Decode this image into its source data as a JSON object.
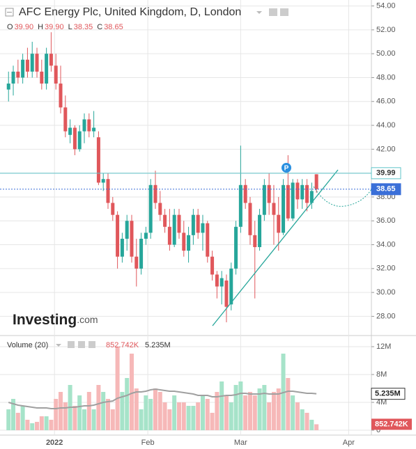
{
  "chart_data": {
    "type": "candlestick",
    "title": "AFC Energy Plc, United Kingdom, D, London",
    "ohlc_header": [
      {
        "key": "O",
        "text": "39.90"
      },
      {
        "key": "H",
        "text": "39.90"
      },
      {
        "key": "L",
        "text": "38.35"
      },
      {
        "key": "C",
        "text": "38.65"
      }
    ],
    "logo": {
      "brand": "Investing",
      "suffix": ".com"
    },
    "marker": "P",
    "up_color": "#26a69a",
    "down_color": "#e0575b",
    "volume_up_color": "#a6e3c9",
    "volume_down_color": "#f6b8b8",
    "open": [
      47,
      47.5,
      48.5,
      48,
      49.5,
      48.5,
      50,
      48.5,
      47.5,
      50,
      49,
      47.5,
      45.5,
      43.2,
      43.8,
      42,
      43.5,
      44.5,
      43.5,
      43,
      39.2,
      39.5,
      37.5,
      36.5,
      33,
      34.5,
      36,
      33,
      32,
      34.5,
      35,
      39,
      37.5,
      36.5,
      35.5,
      34,
      36.5,
      35,
      33.5,
      34.8,
      36.5,
      35,
      35.8,
      33,
      31.5,
      30.5,
      31,
      29,
      32,
      35.5,
      39,
      37.5,
      34.8,
      33.8,
      36.5,
      39,
      37.5,
      36.5,
      35,
      39,
      36.2,
      39.2,
      37.8,
      39,
      37.5,
      39.9
    ],
    "high": [
      48.5,
      49,
      49.5,
      50,
      50.5,
      51,
      50.5,
      49.5,
      50.5,
      51.8,
      50,
      49,
      46.5,
      44.5,
      44,
      44,
      45,
      45,
      45.2,
      43.5,
      40,
      40,
      38,
      36.8,
      35,
      36.5,
      36.5,
      34.5,
      35,
      35.5,
      39.5,
      40.2,
      38.5,
      37,
      37,
      37,
      37,
      36,
      35.5,
      37,
      37,
      36.5,
      36,
      33.5,
      31.8,
      31.8,
      31.5,
      32.5,
      36,
      42.3,
      39.5,
      38,
      36,
      37,
      39.5,
      40,
      39,
      38,
      39.5,
      41.5,
      39.5,
      39.5,
      39.5,
      39.5,
      39.2,
      39.9
    ],
    "low": [
      46,
      46.5,
      47.5,
      47.5,
      48,
      48,
      48,
      47,
      47,
      48.5,
      47,
      45,
      43,
      42.5,
      41.5,
      41.8,
      42.5,
      43,
      43,
      39,
      38.5,
      37,
      36,
      32,
      32.5,
      33.5,
      32.5,
      30.5,
      31.5,
      34,
      34.5,
      37,
      36,
      35,
      33.5,
      33.8,
      34.5,
      33,
      32.5,
      34,
      34.5,
      33.5,
      32.5,
      31,
      29.5,
      29,
      27.5,
      28.5,
      31.5,
      35,
      37,
      34,
      29.5,
      33.5,
      36,
      36.5,
      34,
      33.5,
      34.8,
      36,
      36,
      37,
      37,
      36.8,
      37,
      38.35
    ],
    "close": [
      47.5,
      48.5,
      48,
      49.5,
      48.5,
      50,
      48.5,
      47.5,
      50,
      49,
      47.5,
      45.5,
      43.5,
      43.8,
      42,
      43.5,
      44.5,
      43.5,
      43.8,
      39.2,
      39.5,
      37.5,
      36.5,
      33,
      34.5,
      36,
      33,
      32,
      34.5,
      35,
      39,
      37.5,
      36.5,
      35.5,
      34,
      36.5,
      35,
      33.5,
      34.8,
      36.5,
      35,
      35.8,
      33,
      31.5,
      30.5,
      31.2,
      28.8,
      32,
      35.5,
      39,
      37.5,
      34.8,
      33.8,
      36.5,
      39,
      37.5,
      36.5,
      35,
      39,
      36.2,
      39.2,
      37.8,
      39,
      37.5,
      38.5,
      38.65
    ],
    "xlim": [
      -1.8,
      76.6
    ],
    "xticks": [
      {
        "value": 9.7,
        "label": "2022"
      },
      {
        "value": 29.4,
        "label": "Feb"
      },
      {
        "value": 49,
        "label": "Mar"
      },
      {
        "value": 71.8,
        "label": "Apr"
      }
    ],
    "ylim": [
      26.8,
      54.5
    ],
    "yticks": [
      {
        "value": 54,
        "label": "54.00"
      },
      {
        "value": 52,
        "label": "52.00"
      },
      {
        "value": 50,
        "label": "50.00"
      },
      {
        "value": 48,
        "label": "48.00"
      },
      {
        "value": 46,
        "label": "46.00"
      },
      {
        "value": 44,
        "label": "44.00"
      },
      {
        "value": 42,
        "label": "42.00"
      },
      {
        "value": 40,
        "label": "40.00"
      },
      {
        "value": 38,
        "label": "38.00"
      },
      {
        "value": 36,
        "label": "36.00"
      },
      {
        "value": 34,
        "label": "34.00"
      },
      {
        "value": 32,
        "label": "32.00"
      },
      {
        "value": 30,
        "label": "30.00"
      },
      {
        "value": 28,
        "label": "28.00"
      }
    ],
    "price_lines": [
      {
        "value": 39.99,
        "label": "39.99",
        "color": "#5fc4c8",
        "dash": false
      },
      {
        "value": 38.65,
        "label": "38.65",
        "color": "#3a6fd8",
        "dash": true
      }
    ],
    "volume": {
      "name": "Volume (20)",
      "last_label": "852.742K",
      "ma_label": "5.235M",
      "ma_value": 5.235,
      "ylim": [
        0,
        12.7
      ],
      "yticks": [
        {
          "value": 12,
          "label": "12M"
        },
        {
          "value": 8,
          "label": "8M"
        },
        {
          "value": 4,
          "label": "4M"
        },
        0
      ],
      "values": [
        3,
        4.5,
        2.5,
        3.5,
        1.5,
        1,
        1.2,
        2,
        2,
        1.5,
        4.5,
        5.5,
        4,
        6.5,
        3.5,
        5,
        3,
        5.5,
        3,
        6.5,
        5.5,
        4.5,
        3,
        12,
        5.5,
        7.5,
        11,
        6,
        3,
        5,
        4.5,
        6,
        5.5,
        4,
        3,
        5,
        4,
        4,
        3.5,
        3.5,
        4,
        5,
        4.5,
        2.5,
        5.5,
        7,
        5,
        4,
        6.5,
        7,
        5,
        5.5,
        5,
        6,
        6.5,
        4,
        5.5,
        6,
        11,
        7.5,
        5,
        4,
        3,
        2.5,
        1.5,
        0.852742
      ],
      "ma": [
        4,
        3.8,
        3.6,
        3.5,
        3.4,
        3.3,
        3.2,
        3.2,
        3.2,
        3.1,
        3.1,
        3.2,
        3.2,
        3.3,
        3.3,
        3.4,
        3.5,
        3.5,
        3.6,
        3.8,
        4,
        4.1,
        4.2,
        4.6,
        4.8,
        5,
        5.3,
        5.5,
        5.5,
        5.6,
        5.8,
        5.9,
        5.8,
        5.7,
        5.6,
        5.6,
        5.5,
        5.4,
        5.3,
        5.2,
        5,
        5,
        5,
        4.8,
        4.8,
        4.9,
        5,
        5,
        5.1,
        5.3,
        5.3,
        5.2,
        5.2,
        5.2,
        5.3,
        5.2,
        5.2,
        5.2,
        5.4,
        5.6,
        5.6,
        5.5,
        5.4,
        5.3,
        5.3,
        5.235
      ],
      "ma_color": "#a0a0a0"
    }
  }
}
